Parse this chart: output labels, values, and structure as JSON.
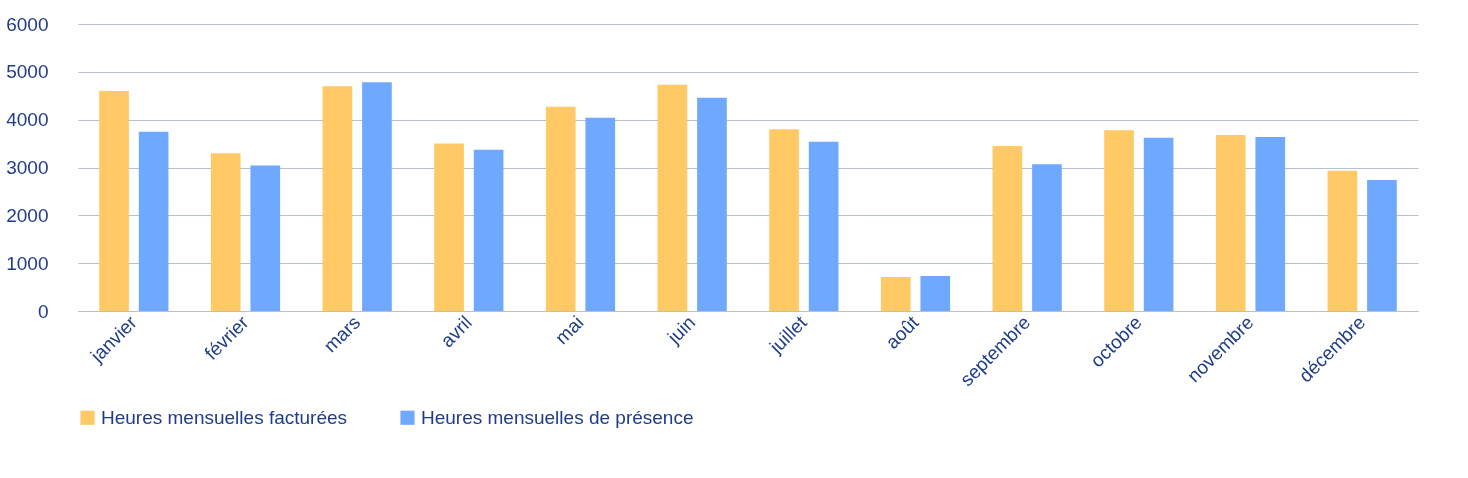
{
  "chart_data": {
    "type": "bar",
    "categories": [
      "janvier",
      "février",
      "mars",
      "avril",
      "mai",
      "juin",
      "juillet",
      "août",
      "septembre",
      "octobre",
      "novembre",
      "décembre"
    ],
    "series": [
      {
        "name": "Heures mensuelles facturées",
        "color": "#ffc966",
        "values": [
          4600,
          3300,
          4700,
          3500,
          4270,
          4730,
          3800,
          710,
          3450,
          3780,
          3680,
          2930
        ]
      },
      {
        "name": "Heures mensuelles de présence",
        "color": "#6fa8ff",
        "values": [
          3750,
          3040,
          4780,
          3370,
          4040,
          4460,
          3540,
          730,
          3070,
          3620,
          3640,
          2740
        ]
      }
    ],
    "ylim": [
      0,
      6000
    ],
    "yticks": [
      0,
      1000,
      2000,
      3000,
      4000,
      5000,
      6000
    ],
    "grid": "y",
    "legend": "bottom"
  }
}
